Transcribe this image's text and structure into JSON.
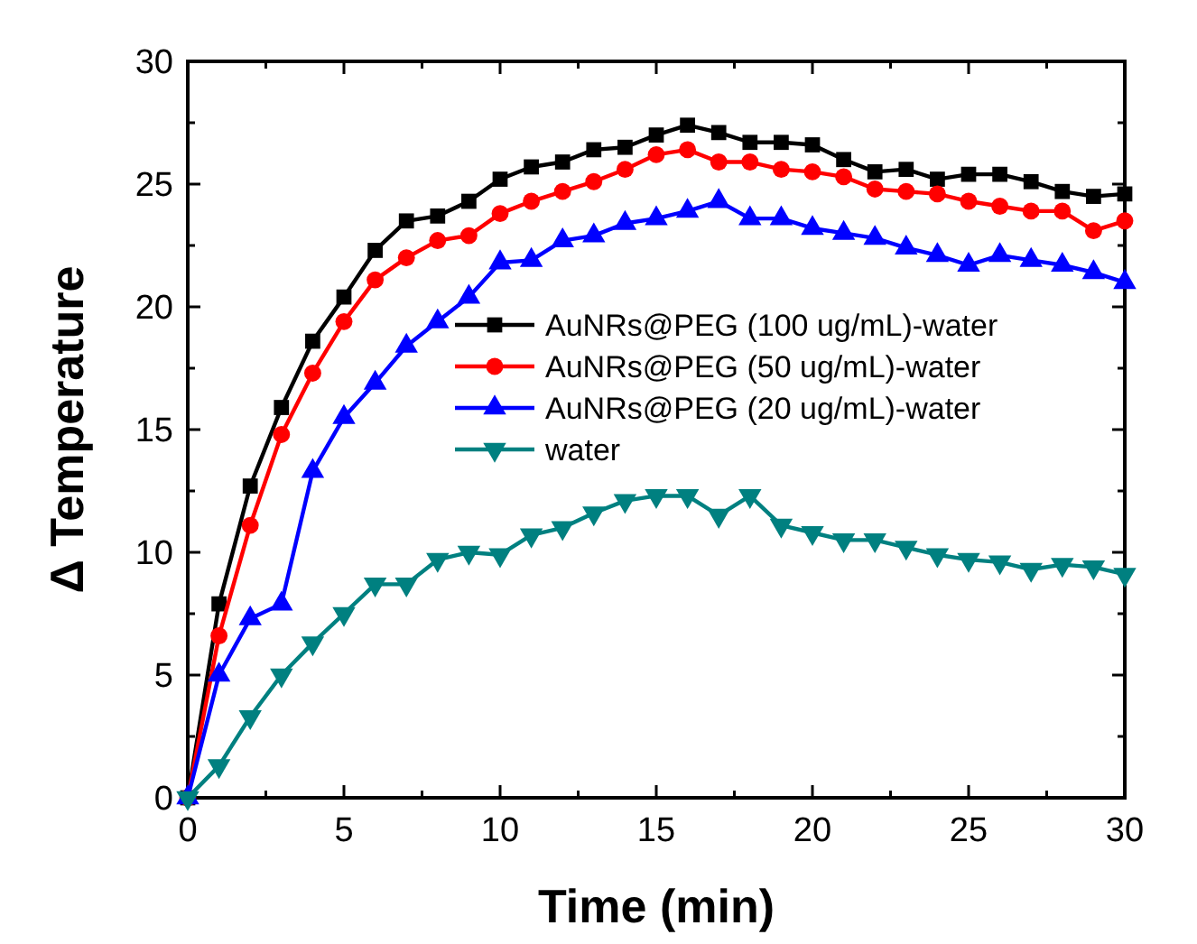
{
  "chart_data": {
    "type": "line",
    "xlabel": "Time (min)",
    "ylabel": "Δ Temperature",
    "x": [
      0,
      1,
      2,
      3,
      4,
      5,
      6,
      7,
      8,
      9,
      10,
      11,
      12,
      13,
      14,
      15,
      16,
      17,
      18,
      19,
      20,
      21,
      22,
      23,
      24,
      25,
      26,
      27,
      28,
      29,
      30
    ],
    "xlim": [
      0,
      30
    ],
    "ylim": [
      0,
      30
    ],
    "xticks": [
      0,
      {
        "value": 2.5,
        "label": null
      },
      5,
      {
        "value": 7.5,
        "label": null
      },
      10,
      {
        "value": 12.5,
        "label": null
      },
      15,
      {
        "value": 17.5,
        "label": null
      },
      20,
      {
        "value": 22.5,
        "label": null
      },
      25,
      {
        "value": 27.5,
        "label": null
      },
      30
    ],
    "yticks": [
      0,
      {
        "value": 2.5,
        "label": null
      },
      5,
      {
        "value": 7.5,
        "label": null
      },
      10,
      {
        "value": 12.5,
        "label": null
      },
      15,
      {
        "value": 17.5,
        "label": null
      },
      20,
      {
        "value": 22.5,
        "label": null
      },
      25,
      {
        "value": 27.5,
        "label": null
      },
      30
    ],
    "legend": "right",
    "grid": false,
    "line_style": "solid",
    "series": [
      {
        "name": "AuNRs@PEG (100 ug/mL)-water",
        "color": "#000000",
        "marker": "square",
        "values": [
          0,
          7.9,
          12.7,
          15.9,
          18.6,
          20.4,
          22.3,
          23.5,
          23.7,
          24.3,
          25.2,
          25.7,
          25.9,
          26.4,
          26.5,
          27.0,
          27.4,
          27.1,
          26.7,
          26.7,
          26.6,
          26.0,
          25.5,
          25.6,
          25.2,
          25.4,
          25.4,
          25.1,
          24.7,
          24.5,
          24.6
        ]
      },
      {
        "name": "AuNRs@PEG (50 ug/mL)-water",
        "color": "#ff0000",
        "marker": "circle",
        "values": [
          0,
          6.6,
          11.1,
          14.8,
          17.3,
          19.4,
          21.1,
          22.0,
          22.7,
          22.9,
          23.8,
          24.3,
          24.7,
          25.1,
          25.6,
          26.2,
          26.4,
          25.9,
          25.9,
          25.6,
          25.5,
          25.3,
          24.8,
          24.7,
          24.6,
          24.3,
          24.1,
          23.9,
          23.9,
          23.1,
          23.5
        ]
      },
      {
        "name": "AuNRs@PEG (20 ug/mL)-water",
        "color": "#0000ff",
        "marker": "triangle",
        "values": [
          0,
          5.0,
          7.3,
          7.9,
          13.3,
          15.5,
          16.9,
          18.4,
          19.4,
          20.4,
          21.8,
          21.9,
          22.7,
          22.9,
          23.4,
          23.6,
          23.9,
          24.3,
          23.6,
          23.6,
          23.2,
          23.0,
          22.8,
          22.4,
          22.1,
          21.7,
          22.1,
          21.9,
          21.7,
          21.4,
          21.0
        ]
      },
      {
        "name": "water",
        "color": "#008080",
        "marker": "triangle-down",
        "values": [
          0,
          1.3,
          3.3,
          5.0,
          6.3,
          7.5,
          8.7,
          8.7,
          9.7,
          10.0,
          9.9,
          10.7,
          11.0,
          11.6,
          12.1,
          12.3,
          12.3,
          11.5,
          12.3,
          11.1,
          10.8,
          10.5,
          10.5,
          10.2,
          9.9,
          9.7,
          9.6,
          9.3,
          9.5,
          9.4,
          9.1
        ]
      }
    ]
  }
}
